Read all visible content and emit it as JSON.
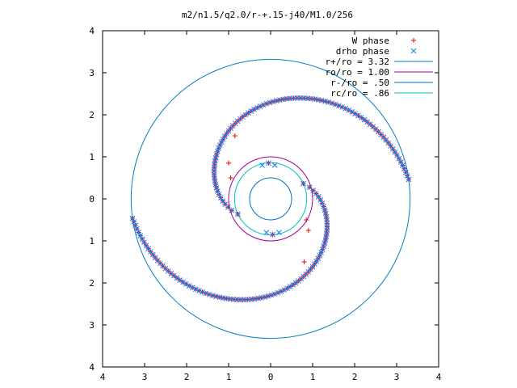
{
  "chart_data": {
    "type": "scatter",
    "title": "m2/n1.5/q2.0/r-+.15-j40/M1.0/256",
    "xlabel": "",
    "ylabel": "",
    "xlim": [
      -4,
      4
    ],
    "ylim": [
      -4,
      4
    ],
    "x_ticks": [
      -4,
      -3,
      -2,
      -1,
      0,
      1,
      2,
      3,
      4
    ],
    "y_ticks": [
      -4,
      -3,
      -2,
      -1,
      0,
      1,
      2,
      3,
      4
    ],
    "x_tick_labels": [
      "4",
      "3",
      "2",
      "1",
      "0",
      "1",
      "2",
      "3",
      "4"
    ],
    "y_tick_labels": [
      "4",
      "3",
      "2",
      "1",
      "0",
      "1",
      "2",
      "3",
      "4"
    ],
    "grid": false,
    "legend_position": "top-right",
    "series": [
      {
        "name": "W phase",
        "kind": "points",
        "marker": "plus",
        "color": "#ff0000",
        "spiral_arms": [
          {
            "r_start": 0.86,
            "theta_start_deg": -155,
            "r_end": 3.32,
            "theta_end_deg": -352,
            "points": 90
          },
          {
            "r_start": 0.86,
            "theta_start_deg": 25,
            "r_end": 3.32,
            "theta_end_deg": -172,
            "points": 90
          }
        ],
        "points": [
          {
            "x": -0.95,
            "y": 0.5
          },
          {
            "x": -1.0,
            "y": 0.85
          },
          {
            "x": -0.85,
            "y": 1.5
          },
          {
            "x": 0.85,
            "y": -0.5
          },
          {
            "x": 0.9,
            "y": -0.75
          },
          {
            "x": 0.8,
            "y": -1.5
          },
          {
            "x": -0.05,
            "y": 0.85
          },
          {
            "x": 0.05,
            "y": -0.85
          }
        ]
      },
      {
        "name": "drho phase",
        "kind": "points",
        "marker": "cross",
        "color": "#0080ff",
        "spiral_arms": [
          {
            "r_start": 0.86,
            "theta_start_deg": -155,
            "r_end": 3.32,
            "theta_end_deg": -352,
            "points": 90
          },
          {
            "r_start": 0.86,
            "theta_start_deg": 25,
            "r_end": 3.32,
            "theta_end_deg": -172,
            "points": 90
          }
        ],
        "points": [
          {
            "x": -0.05,
            "y": 0.85
          },
          {
            "x": 0.1,
            "y": 0.8
          },
          {
            "x": -0.2,
            "y": 0.8
          },
          {
            "x": 0.05,
            "y": -0.85
          },
          {
            "x": -0.1,
            "y": -0.8
          },
          {
            "x": 0.2,
            "y": -0.8
          }
        ]
      },
      {
        "name": "r+/ro = 3.32",
        "kind": "circle",
        "radius": 3.32,
        "color": "#0080c0"
      },
      {
        "name": "ro/ro = 1.00",
        "kind": "circle",
        "radius": 1.0,
        "color": "#a000a0"
      },
      {
        "name": "r-/ro = .50",
        "kind": "circle",
        "radius": 0.5,
        "color": "#0070c0"
      },
      {
        "name": "rc/ro = .86",
        "kind": "circle",
        "radius": 0.86,
        "color": "#00c0c0"
      }
    ]
  }
}
